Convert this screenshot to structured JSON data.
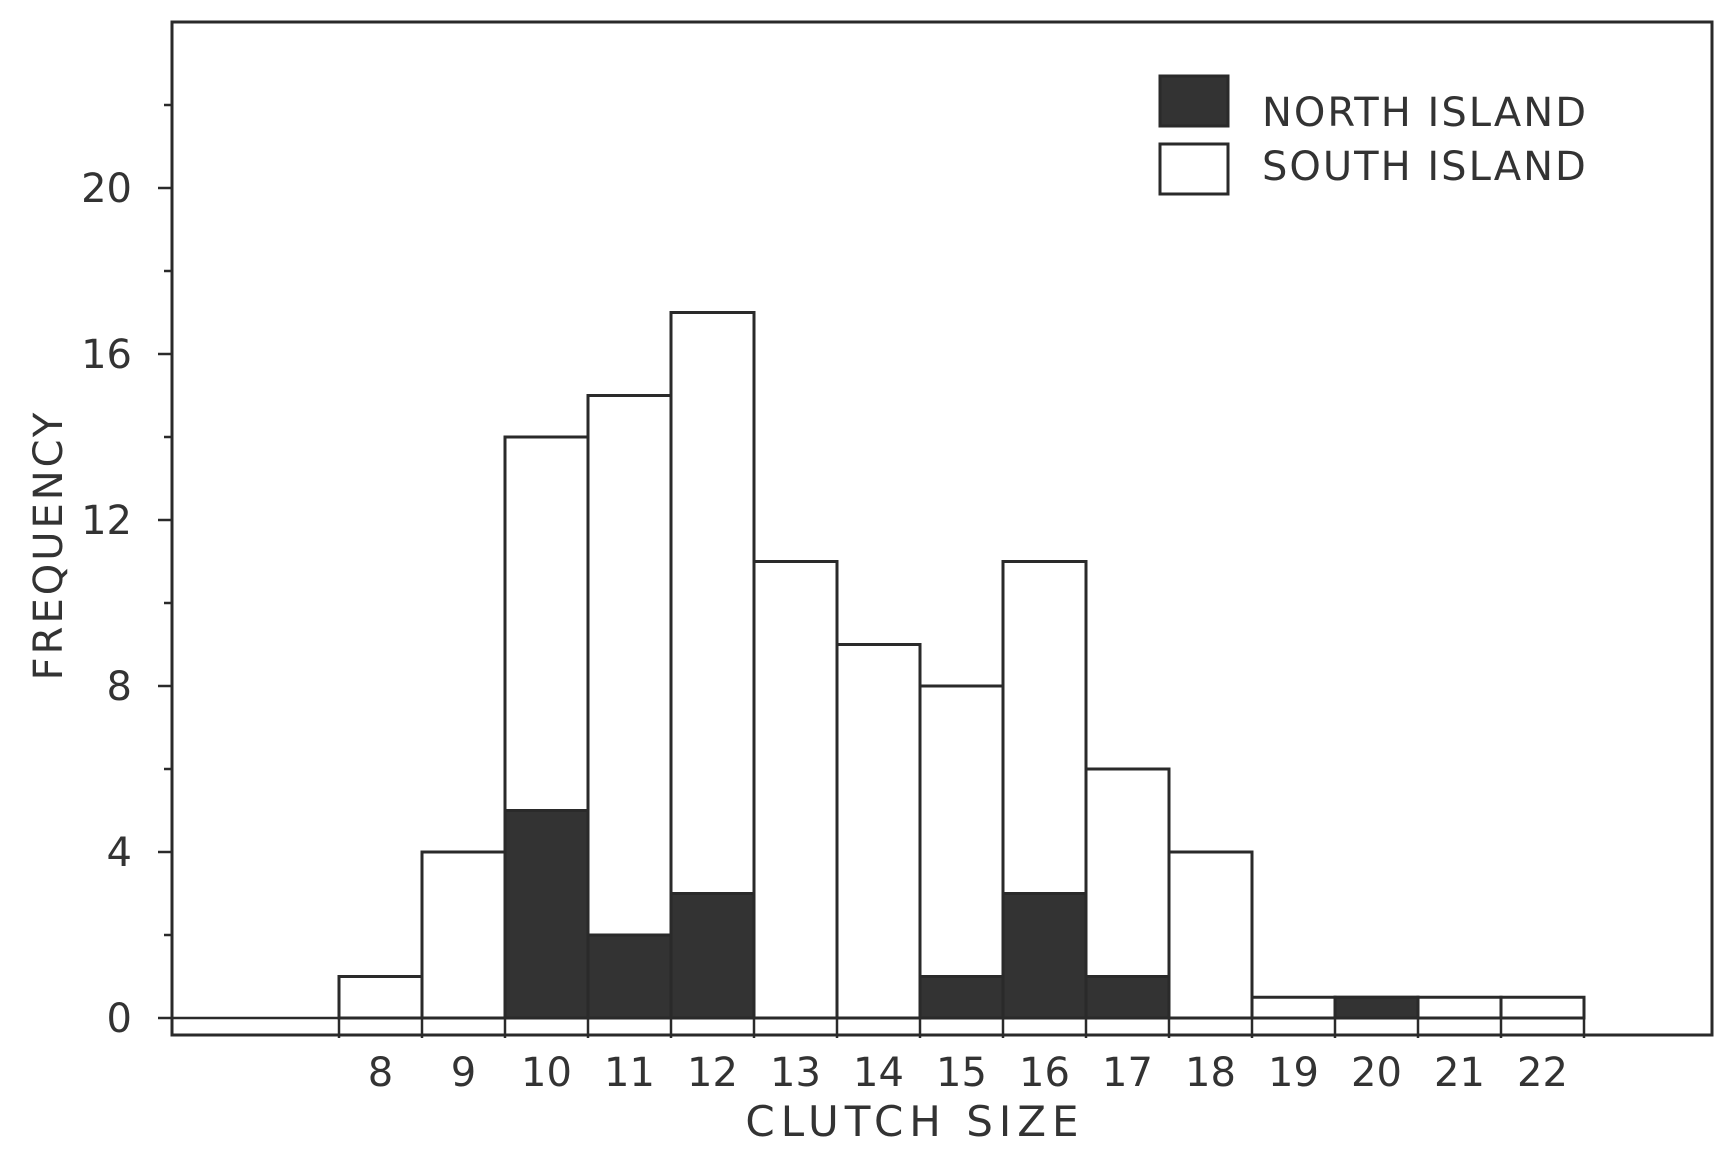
{
  "chart_data": {
    "type": "bar",
    "stacked": true,
    "categories": [
      "8",
      "9",
      "10",
      "11",
      "12",
      "13",
      "14",
      "15",
      "16",
      "17",
      "18",
      "19",
      "20",
      "21",
      "22"
    ],
    "series": [
      {
        "name": "NORTH ISLAND",
        "color": "#333333",
        "values": [
          0,
          0,
          5,
          2,
          3,
          0,
          0,
          1,
          3,
          1,
          0,
          0,
          0.5,
          0,
          0
        ]
      },
      {
        "name": "SOUTH ISLAND",
        "color": "#ffffff",
        "values": [
          1,
          4,
          9,
          13,
          14,
          11,
          9,
          7,
          8,
          5,
          4,
          0.5,
          0,
          0.5,
          0.5
        ]
      }
    ],
    "xlabel": "CLUTCH SIZE",
    "ylabel": "FREQUENCY",
    "ylim": [
      0,
      24
    ],
    "yticks": [
      "0",
      "4",
      "8",
      "12",
      "16",
      "20"
    ],
    "legend_position": "top-right",
    "grid": false
  }
}
